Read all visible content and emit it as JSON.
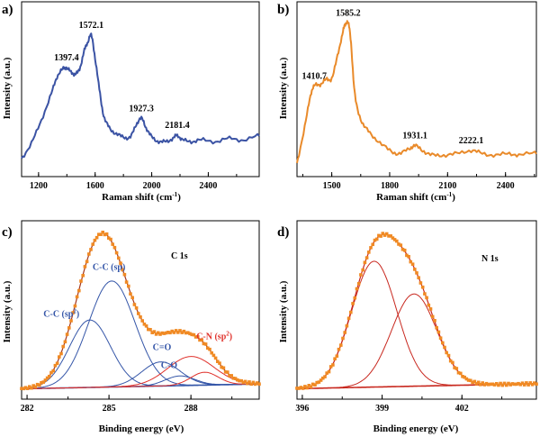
{
  "panels": [
    {
      "id": "a",
      "label": "a)",
      "chart_data": {
        "type": "line",
        "title": "",
        "xlabel": "Raman shift (cm$^{-1}$)",
        "ylabel": "Intensity (a.u.)",
        "xlim": [
          1080,
          2760
        ],
        "ylim": [
          0,
          1
        ],
        "xticks": [
          1200,
          1600,
          2000,
          2400
        ],
        "grid": false,
        "series": [
          {
            "name": "",
            "color": "#3b53a4",
            "x": [
              1080,
              1150,
              1220,
              1290,
              1330,
              1370,
              1397,
              1430,
              1460,
              1490,
              1520,
              1545,
              1572,
              1600,
              1630,
              1660,
              1700,
              1750,
              1800,
              1850,
              1890,
              1927,
              1960,
              2000,
              2050,
              2100,
              2150,
              2181,
              2220,
              2280,
              2350,
              2450,
              2550,
              2650,
              2760
            ],
            "y": [
              0.05,
              0.15,
              0.3,
              0.47,
              0.58,
              0.63,
              0.64,
              0.61,
              0.6,
              0.63,
              0.74,
              0.8,
              0.85,
              0.7,
              0.5,
              0.33,
              0.25,
              0.21,
              0.19,
              0.19,
              0.27,
              0.31,
              0.25,
              0.19,
              0.16,
              0.16,
              0.18,
              0.2,
              0.17,
              0.16,
              0.17,
              0.16,
              0.18,
              0.17,
              0.2
            ]
          }
        ],
        "annotations": [
          {
            "text": "1397.4",
            "x": 1397,
            "y": 0.64
          },
          {
            "text": "1572.1",
            "x": 1572,
            "y": 0.85
          },
          {
            "text": "1927.3",
            "x": 1927,
            "y": 0.31
          },
          {
            "text": "2181.4",
            "x": 2181,
            "y": 0.2
          }
        ]
      }
    },
    {
      "id": "b",
      "label": "b)",
      "chart_data": {
        "type": "line",
        "title": "",
        "xlabel": "Raman shift (cm$^{-1}$)",
        "ylabel": "Intensity (a.u.)",
        "xlim": [
          1320,
          2560
        ],
        "ylim": [
          0,
          1
        ],
        "xticks": [
          1500,
          1800,
          2100,
          2400
        ],
        "grid": false,
        "series": [
          {
            "name": "",
            "color": "#e98a2a",
            "x": [
              1320,
              1360,
              1390,
              1410,
              1440,
              1470,
              1500,
              1530,
              1555,
              1570,
              1585,
              1600,
              1620,
              1650,
              1690,
              1740,
              1800,
              1850,
              1900,
              1931,
              1970,
              2020,
              2080,
              2150,
              2222,
              2280,
              2350,
              2420,
              2480,
              2560
            ],
            "y": [
              0.02,
              0.25,
              0.45,
              0.51,
              0.52,
              0.55,
              0.56,
              0.7,
              0.84,
              0.9,
              0.91,
              0.78,
              0.45,
              0.3,
              0.22,
              0.16,
              0.1,
              0.08,
              0.11,
              0.13,
              0.1,
              0.07,
              0.07,
              0.08,
              0.1,
              0.08,
              0.07,
              0.08,
              0.07,
              0.09
            ]
          }
        ],
        "annotations": [
          {
            "text": "1410.7",
            "x": 1410,
            "y": 0.51
          },
          {
            "text": "1585.2",
            "x": 1585,
            "y": 0.91
          },
          {
            "text": "1931.1",
            "x": 1931,
            "y": 0.13
          },
          {
            "text": "2222.1",
            "x": 2222,
            "y": 0.1
          }
        ]
      }
    },
    {
      "id": "c",
      "label": "c)",
      "panel_title": "C 1s",
      "chart_data": {
        "type": "line",
        "title": "C 1s",
        "xlabel": "Binding energy (eV)",
        "ylabel": "Intensity (a.u.)",
        "xlim": [
          281.8,
          290.5
        ],
        "ylim": [
          0,
          1
        ],
        "xticks": [
          282,
          285,
          288
        ],
        "grid": false,
        "measured_color": "#f08a24",
        "envelope_color": "#a3361c",
        "baseline_color": "#3556a8",
        "components": [
          {
            "name": "C-C (sp²)",
            "center": 284.3,
            "height": 0.42,
            "width": 0.75,
            "color": "#3556a8"
          },
          {
            "name": "C-C (sp)",
            "center": 285.1,
            "height": 0.66,
            "width": 0.85,
            "color": "#3556a8"
          },
          {
            "name": "C=O",
            "center": 286.9,
            "height": 0.15,
            "width": 0.7,
            "color": "#3556a8"
          },
          {
            "name": "C-O",
            "center": 287.6,
            "height": 0.06,
            "width": 0.55,
            "color": "#3556a8"
          },
          {
            "name": "C-N (sp²)",
            "center": 288.0,
            "height": 0.18,
            "width": 0.85,
            "color": "#e0312b"
          },
          {
            "name": "",
            "center": 288.5,
            "height": 0.08,
            "width": 0.5,
            "color": "#e0312b"
          }
        ],
        "annotations": [
          {
            "text": "C-C (sp",
            "sup": "2",
            "tail": ")",
            "x": 282.6,
            "y": 0.47
          },
          {
            "text": "C-C (sp)",
            "sup": "",
            "tail": "",
            "x": 284.4,
            "y": 0.76
          },
          {
            "text": "C=O",
            "sup": "",
            "tail": "",
            "x": 286.6,
            "y": 0.26
          },
          {
            "text": "C-O",
            "sup": "",
            "tail": "",
            "x": 286.9,
            "y": 0.15
          },
          {
            "text": "C-N (sp",
            "sup": "2",
            "tail": ")",
            "x": 288.2,
            "y": 0.33
          }
        ]
      }
    },
    {
      "id": "d",
      "label": "d)",
      "panel_title": "N 1s",
      "chart_data": {
        "type": "line",
        "title": "N 1s",
        "xlabel": "Binding energy (eV)",
        "ylabel": "Intensity (a.u.)",
        "xlim": [
          395.8,
          404.8
        ],
        "ylim": [
          0,
          1
        ],
        "xticks": [
          396,
          399,
          402
        ],
        "grid": false,
        "measured_color": "#f08a24",
        "envelope_color": "#c8281f",
        "baseline_color": "#c8281f",
        "components": [
          {
            "name": "",
            "center": 398.7,
            "height": 0.75,
            "width": 0.85,
            "color": "#c8281f"
          },
          {
            "name": "",
            "center": 400.2,
            "height": 0.55,
            "width": 0.85,
            "color": "#c8281f"
          }
        ],
        "annotations": []
      }
    }
  ]
}
